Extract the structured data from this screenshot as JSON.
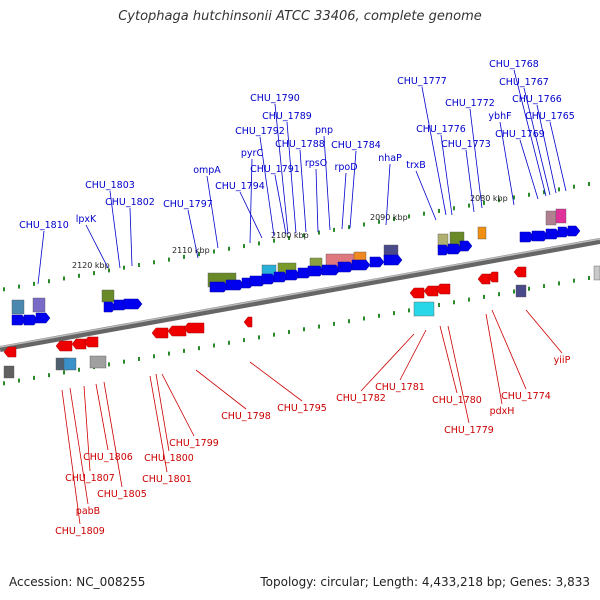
{
  "title": "Cytophaga hutchinsonii ATCC 33406, complete genome",
  "footer": {
    "accession": "Accession: NC_008255",
    "stats": "Topology: circular; Length: 4,433,218 bp; Genes: 3,833"
  },
  "colors": {
    "forward_label": "#0000cc",
    "reverse_label": "#cc0000",
    "forward_gene": "#0000ee",
    "reverse_gene": "#ee0000",
    "backbone": "#888888",
    "tick": "#2a8a2a"
  },
  "scale_ticks": [
    "2120 kbp",
    "2110 kbp",
    "2100 kbp",
    "2090 kbp",
    "2080 kbp"
  ],
  "forward_labels": [
    "CHU_1810",
    "lpxK",
    "CHU_1803",
    "CHU_1802",
    "CHU_1797",
    "ompA",
    "pyrC",
    "CHU_1794",
    "CHU_1792",
    "CHU_1790",
    "CHU_1789",
    "CHU_1788",
    "CHU_1791",
    "pnp",
    "rpsO",
    "CHU_1784",
    "rpoD",
    "nhaP",
    "CHU_1777",
    "trxB",
    "CHU_1776",
    "CHU_1772",
    "CHU_1773",
    "ybhF",
    "CHU_1768",
    "CHU_1767",
    "CHU_1766",
    "CHU_1769",
    "CHU_1765"
  ],
  "reverse_labels": [
    "CHU_1809",
    "pabB",
    "CHU_1807",
    "CHU_1806",
    "CHU_1805",
    "CHU_1801",
    "CHU_1800",
    "CHU_1799",
    "CHU_1798",
    "CHU_1795",
    "CHU_1782",
    "CHU_1781",
    "CHU_1780",
    "CHU_1779",
    "pdxH",
    "CHU_1774",
    "yiiP"
  ]
}
